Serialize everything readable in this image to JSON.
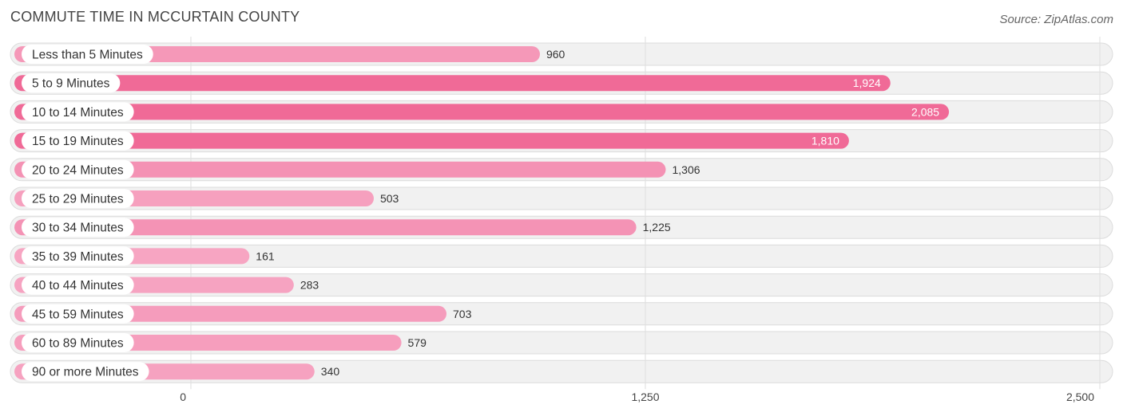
{
  "header": {
    "title": "COMMUTE TIME IN MCCURTAIN COUNTY",
    "source": "Source: ZipAtlas.com"
  },
  "chart_data": {
    "type": "bar",
    "orientation": "horizontal",
    "categories": [
      "Less than 5 Minutes",
      "5 to 9 Minutes",
      "10 to 14 Minutes",
      "15 to 19 Minutes",
      "20 to 24 Minutes",
      "25 to 29 Minutes",
      "30 to 34 Minutes",
      "35 to 39 Minutes",
      "40 to 44 Minutes",
      "45 to 59 Minutes",
      "60 to 89 Minutes",
      "90 or more Minutes"
    ],
    "values": [
      960,
      1924,
      2085,
      1810,
      1306,
      503,
      1225,
      161,
      283,
      703,
      579,
      340
    ],
    "value_labels": [
      "960",
      "1,924",
      "2,085",
      "1,810",
      "1,306",
      "503",
      "1,225",
      "161",
      "283",
      "703",
      "579",
      "340"
    ],
    "xlim": [
      0,
      2500
    ],
    "ticks": [
      0,
      1250,
      2500
    ],
    "tick_labels": [
      "0",
      "1,250",
      "2,500"
    ],
    "grid": true,
    "legend": "none",
    "colors": {
      "bar_strong": "#f06a97",
      "bar_light": "#f7a8c4",
      "row_background": "#f1f1f1"
    }
  }
}
